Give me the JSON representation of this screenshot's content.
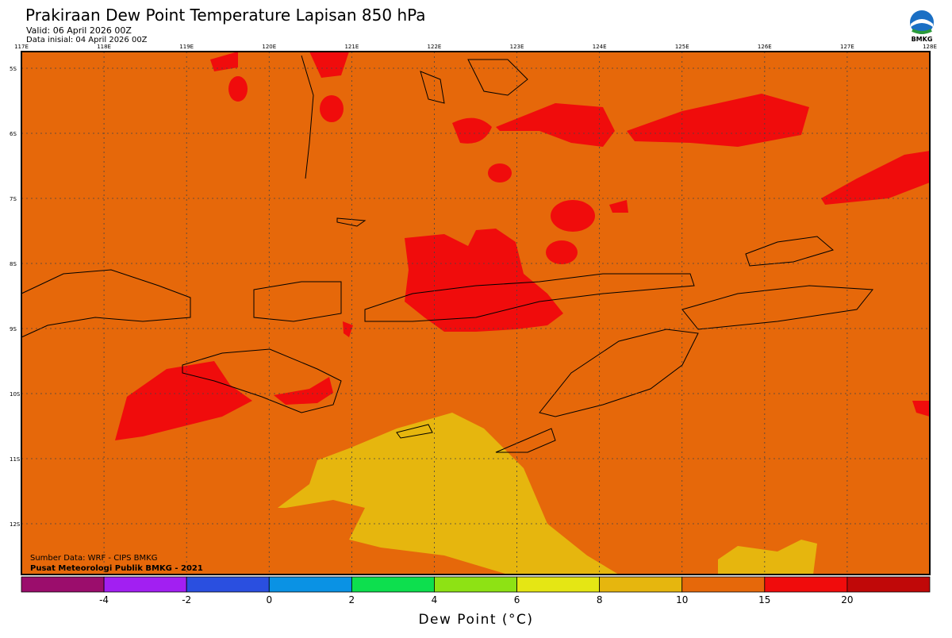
{
  "header": {
    "title": "Prakiraan Dew Point Temperature Lapisan 850 hPa",
    "valid": "Valid: 06 April 2026 00Z",
    "initial": "Data inisial: 04 April 2026 00Z",
    "logo": "BMKG"
  },
  "map": {
    "lon_labels": [
      "117E",
      "118E",
      "119E",
      "120E",
      "121E",
      "122E",
      "123E",
      "124E",
      "125E",
      "126E",
      "127E",
      "128E"
    ],
    "lat_labels": [
      "5S",
      "6S",
      "7S",
      "8S",
      "9S",
      "10S",
      "11S",
      "12S"
    ],
    "source": "Sumber Data: WRF - CIPS BMKG",
    "credit": "Pusat Meteorologi Publik BMKG - 2021"
  },
  "colorbar": {
    "title": "Dew Point (°C)",
    "ticks": [
      -4,
      -2,
      0,
      2,
      4,
      6,
      8,
      10,
      15,
      20
    ],
    "colors": [
      "#9b0d6c",
      "#a21ff2",
      "#2a4fe0",
      "#0a92e4",
      "#0ddf4e",
      "#8ee214",
      "#e5e614",
      "#e6b60e",
      "#e6680a",
      "#f00c0c",
      "#c00808"
    ]
  }
}
